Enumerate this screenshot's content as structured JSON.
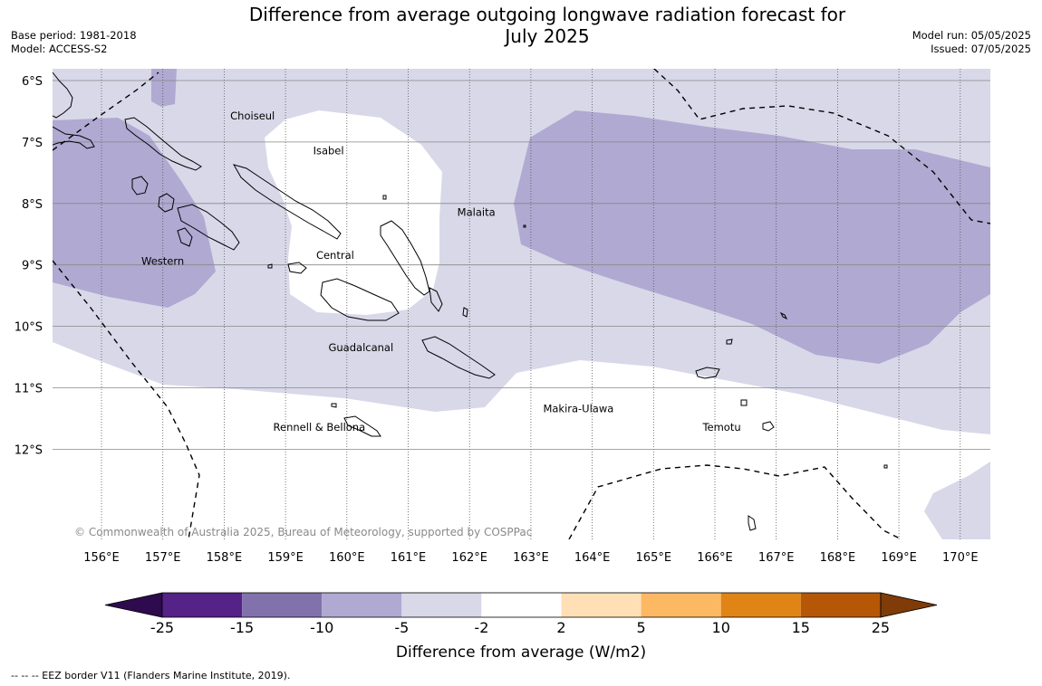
{
  "title_line1": "Difference from average outgoing longwave radiation forecast for",
  "title_line2": "July 2025",
  "base_period": "Base period: 1981-2018",
  "model": "Model: ACCESS-S2",
  "model_run": "Model run: 05/05/2025",
  "issued": "Issued: 07/05/2025",
  "copyright": "© Commonwealth of Australia 2025, Bureau of Meteorology, supported by COSPPac",
  "lat_labels": [
    "6°S",
    "7°S",
    "8°S",
    "9°S",
    "10°S",
    "11°S",
    "12°S"
  ],
  "lon_labels": [
    "156°E",
    "157°E",
    "158°E",
    "159°E",
    "160°E",
    "161°E",
    "162°E",
    "163°E",
    "164°E",
    "165°E",
    "166°E",
    "167°E",
    "168°E",
    "169°E",
    "170°E"
  ],
  "provinces": [
    {
      "name": "Choiseul",
      "lon": 158.1,
      "lat": -6.63
    },
    {
      "name": "Isabel",
      "lon": 159.45,
      "lat": -7.2
    },
    {
      "name": "Malaita",
      "lon": 161.8,
      "lat": -8.2
    },
    {
      "name": "Western",
      "lon": 156.65,
      "lat": -9.0
    },
    {
      "name": "Central",
      "lon": 159.5,
      "lat": -8.9
    },
    {
      "name": "Guadalcanal",
      "lon": 159.7,
      "lat": -10.4
    },
    {
      "name": "Makira-Ulawa",
      "lon": 163.2,
      "lat": -11.4
    },
    {
      "name": "Rennell & Bellona",
      "lon": 158.8,
      "lat": -11.7
    },
    {
      "name": "Temotu",
      "lon": 165.8,
      "lat": -11.7
    }
  ],
  "colorbar": {
    "ticks": [
      "-25",
      "-15",
      "-10",
      "-5",
      "-2",
      "2",
      "5",
      "10",
      "15",
      "25"
    ],
    "colors": [
      "#552288",
      "#8272ab",
      "#b0a9d2",
      "#d8d8e9",
      "#ffffff",
      "#ffdfb6",
      "#fdb863",
      "#e08416",
      "#b55707"
    ],
    "under_color": "#2d0b4e",
    "over_color": "#7f3b08",
    "label": "Difference from average (W/m2)"
  },
  "eez_legend": "--  --  -- EEZ border V11 (Flanders Marine Institute, 2019)."
}
